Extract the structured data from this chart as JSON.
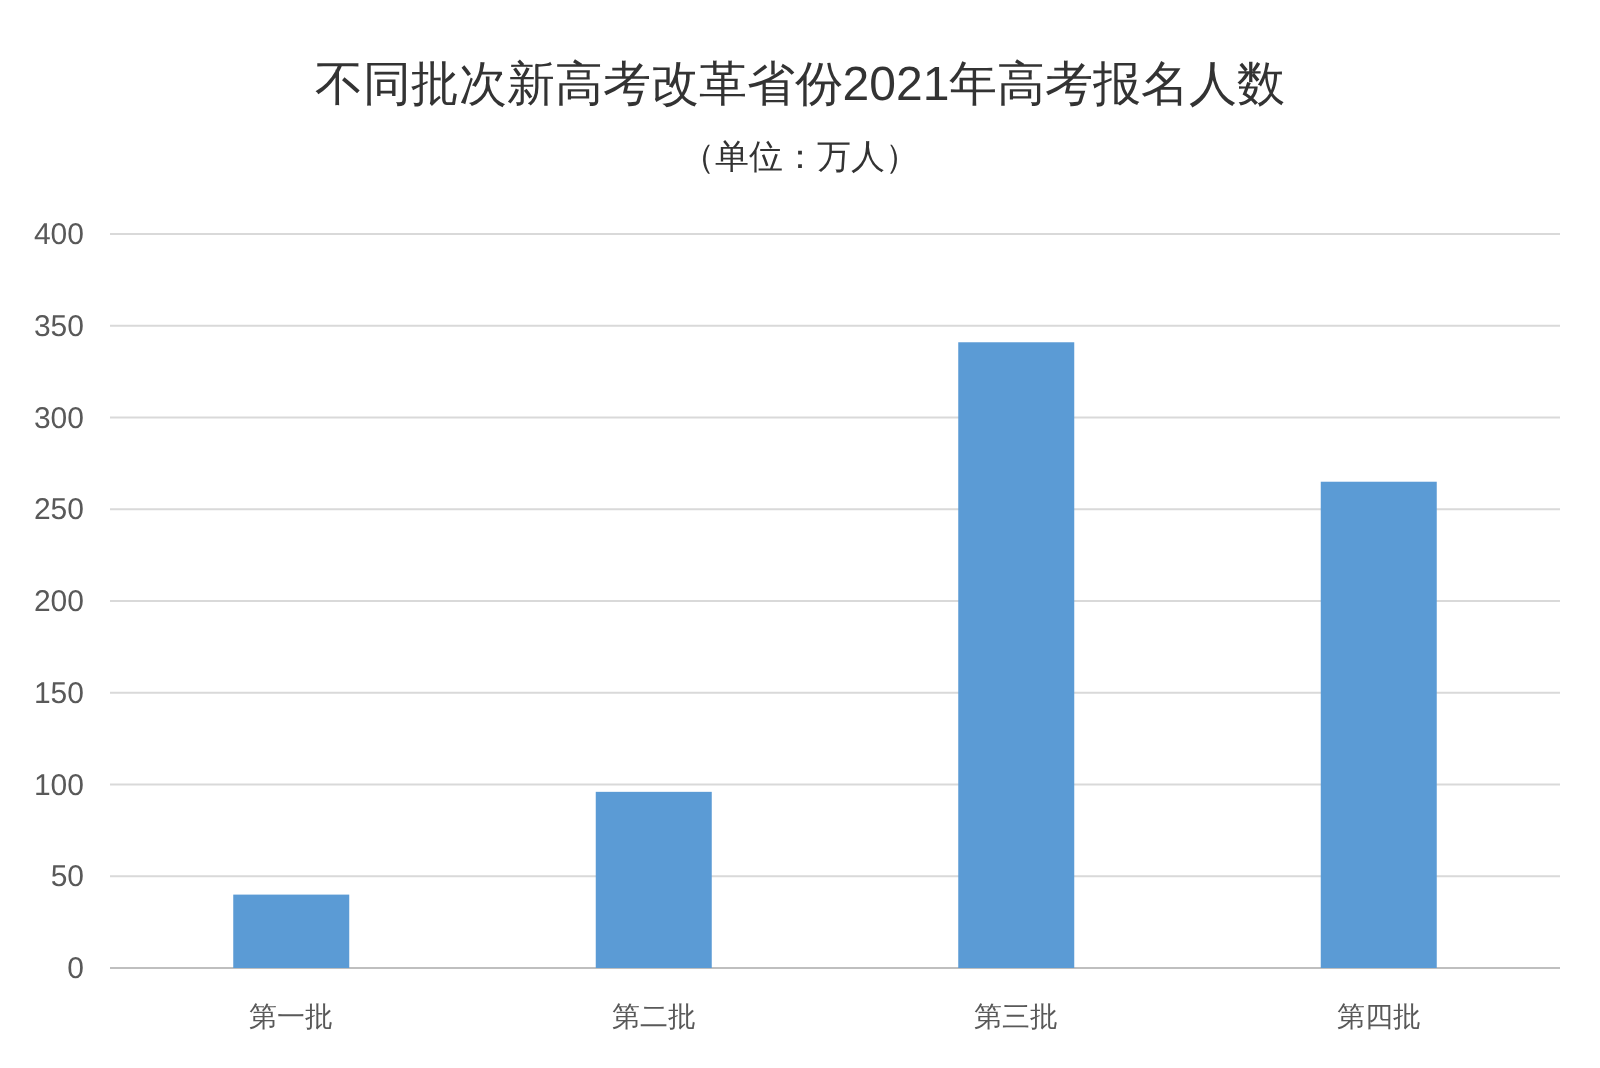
{
  "chart_data": {
    "type": "bar",
    "title": "不同批次新高考改革省份2021年高考报名人数",
    "subtitle": "（单位：万人）",
    "categories": [
      "第一批",
      "第二批",
      "第三批",
      "第四批"
    ],
    "values": [
      40,
      96,
      341,
      265
    ],
    "color": "#5b9bd5",
    "ylim": [
      0,
      400
    ],
    "yticks": [
      0,
      50,
      100,
      150,
      200,
      250,
      300,
      350,
      400
    ],
    "grid": "y"
  }
}
